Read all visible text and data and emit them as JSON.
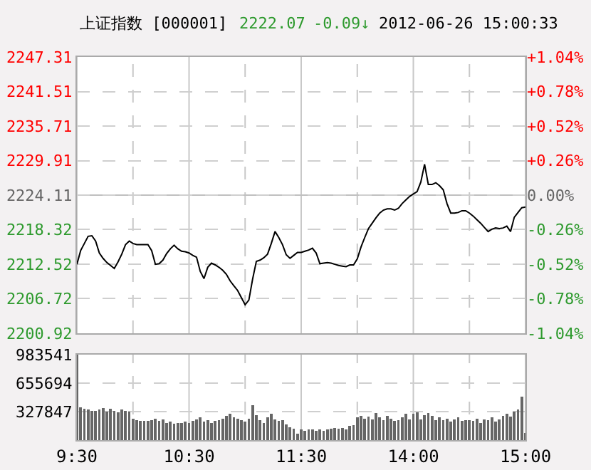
{
  "chart_data": [
    {
      "type": "line",
      "title": "上证指数 [000001]",
      "annotations": [
        "2222.07",
        "-0.09↓",
        "2012-06-26 15:00:33"
      ],
      "categories": [
        null,
        null,
        null,
        null,
        null,
        null,
        null,
        null,
        null,
        null,
        null,
        null,
        null,
        null,
        null,
        null,
        null,
        null,
        null,
        null,
        null,
        null,
        null,
        null,
        null,
        null,
        null,
        null,
        null,
        null,
        null,
        null,
        null,
        null,
        null,
        null,
        null,
        null,
        null,
        null,
        null,
        null,
        null,
        null,
        null,
        null,
        null,
        null,
        null,
        null,
        null,
        null,
        null,
        null,
        null,
        null,
        null,
        null,
        null,
        null,
        null,
        null,
        null,
        null,
        null,
        null,
        null,
        null,
        null,
        null,
        null,
        null,
        null,
        null,
        null,
        null,
        null,
        null,
        null,
        null,
        null,
        null,
        null,
        null,
        null,
        null,
        null,
        null,
        null,
        null,
        null,
        null,
        null,
        null,
        null,
        null,
        null,
        null,
        null,
        null,
        null,
        null,
        null,
        null,
        null,
        null,
        null,
        null,
        null,
        null,
        null,
        null,
        null,
        null,
        null,
        null,
        null,
        null,
        null,
        null,
        null
      ],
      "series": [
        {
          "color": "#000000",
          "values": [
            2212.5,
            2214.8,
            2216.0,
            2217.2,
            2217.3,
            2216.4,
            2214.4,
            2213.5,
            2212.8,
            2212.3,
            2211.8,
            2212.9,
            2214.2,
            2215.8,
            2216.4,
            2216.0,
            2215.8,
            2215.8,
            2215.8,
            2215.8,
            2214.8,
            2212.5,
            2212.6,
            2213.2,
            2214.3,
            2215.1,
            2215.7,
            2215.1,
            2214.7,
            2214.6,
            2214.4,
            2214.0,
            2213.7,
            2211.3,
            2210.1,
            2212.0,
            2212.7,
            2212.4,
            2212.0,
            2211.5,
            2210.8,
            2209.7,
            2208.9,
            2208.1,
            2206.9,
            2205.7,
            2206.5,
            2210.0,
            2213.0,
            2213.2,
            2213.6,
            2214.2,
            2216.0,
            2218.0,
            2217.0,
            2215.8,
            2214.1,
            2213.5,
            2214.0,
            2214.5,
            2214.5,
            2214.7,
            2214.9,
            2215.2,
            2214.4,
            2212.6,
            2212.7,
            2212.8,
            2212.7,
            2212.5,
            2212.3,
            2212.2,
            2212.1,
            2212.4,
            2212.4,
            2213.4,
            2215.4,
            2217.0,
            2218.5,
            2219.4,
            2220.3,
            2221.1,
            2221.6,
            2221.8,
            2221.8,
            2221.6,
            2221.9,
            2222.7,
            2223.3,
            2223.9,
            2224.3,
            2224.7,
            2226.3,
            2229.3,
            2225.9,
            2225.9,
            2226.2,
            2225.7,
            2225.0,
            2222.7,
            2221.1,
            2221.1,
            2221.2,
            2221.5,
            2221.5,
            2221.1,
            2220.6,
            2220.0,
            2219.4,
            2218.7,
            2218.0,
            2218.4,
            2218.6,
            2218.5,
            2218.6,
            2218.9,
            2218.0,
            2220.4,
            2221.2,
            2222.0,
            2222.1
          ]
        }
      ],
      "ylim": [
        2200.92,
        2247.31
      ],
      "yticks": [
        2200.92,
        2206.72,
        2212.52,
        2218.32,
        2224.11,
        2229.91,
        2235.71,
        2241.51,
        2247.31
      ],
      "y2lim": [
        -1.04,
        1.04
      ],
      "y2ticks": [
        {
          "value": -1.04,
          "label": "-1.04%"
        },
        {
          "value": -0.78,
          "label": "-0.78%"
        },
        {
          "value": -0.52,
          "label": "-0.52%"
        },
        {
          "value": -0.26,
          "label": "-0.26%"
        },
        {
          "value": 0,
          "label": "0.00%"
        },
        {
          "value": 0.26,
          "label": "+0.26%"
        },
        {
          "value": 0.52,
          "label": "+0.52%"
        },
        {
          "value": 0.78,
          "label": "+0.78%"
        },
        {
          "value": 1.04,
          "label": "+1.04%"
        }
      ],
      "ref_lines": [
        {
          "axis": "y",
          "value": 2224.11,
          "color": "#c0c0c0",
          "line_style": "solid"
        }
      ],
      "grid": true,
      "line_style": "solid",
      "marker": "none"
    },
    {
      "type": "bar",
      "color": "#666666",
      "categories": [
        "9:30",
        null,
        null,
        null,
        null,
        null,
        null,
        null,
        null,
        null,
        null,
        null,
        null,
        null,
        null,
        null,
        null,
        null,
        null,
        null,
        null,
        null,
        null,
        null,
        null,
        null,
        null,
        null,
        null,
        null,
        "10:30",
        null,
        null,
        null,
        null,
        null,
        null,
        null,
        null,
        null,
        null,
        null,
        null,
        null,
        null,
        null,
        null,
        null,
        null,
        null,
        null,
        null,
        null,
        null,
        null,
        null,
        null,
        null,
        null,
        null,
        "11:30",
        null,
        null,
        null,
        null,
        null,
        null,
        null,
        null,
        null,
        null,
        null,
        null,
        null,
        null,
        null,
        null,
        null,
        null,
        null,
        null,
        null,
        null,
        null,
        null,
        null,
        null,
        null,
        null,
        null,
        "14:00",
        null,
        null,
        null,
        null,
        null,
        null,
        null,
        null,
        null,
        null,
        null,
        null,
        null,
        null,
        null,
        null,
        null,
        null,
        null,
        null,
        null,
        null,
        null,
        null,
        null,
        null,
        null,
        null,
        null,
        "15:00"
      ],
      "values": [
        980000,
        380000,
        360000,
        350000,
        340000,
        340000,
        350000,
        370000,
        330000,
        360000,
        340000,
        320000,
        350000,
        340000,
        330000,
        250000,
        230000,
        220000,
        220000,
        220000,
        230000,
        250000,
        220000,
        240000,
        200000,
        210000,
        190000,
        200000,
        200000,
        210000,
        200000,
        220000,
        240000,
        260000,
        210000,
        230000,
        200000,
        220000,
        230000,
        250000,
        280000,
        300000,
        260000,
        250000,
        230000,
        210000,
        250000,
        400000,
        290000,
        230000,
        200000,
        260000,
        300000,
        240000,
        220000,
        230000,
        180000,
        150000,
        130000,
        70000,
        120000,
        110000,
        120000,
        120000,
        110000,
        120000,
        110000,
        120000,
        130000,
        140000,
        130000,
        140000,
        120000,
        160000,
        170000,
        260000,
        280000,
        250000,
        270000,
        240000,
        310000,
        260000,
        230000,
        280000,
        250000,
        220000,
        230000,
        260000,
        300000,
        240000,
        300000,
        320000,
        240000,
        290000,
        310000,
        280000,
        230000,
        260000,
        230000,
        250000,
        210000,
        240000,
        260000,
        220000,
        230000,
        230000,
        220000,
        250000,
        200000,
        240000,
        230000,
        260000,
        210000,
        240000,
        280000,
        300000,
        270000,
        330000,
        350000,
        500000,
        80000
      ],
      "ylim": [
        0,
        983541
      ],
      "yticks": [
        {
          "value": 0,
          "label": null
        },
        327847,
        655694,
        983541
      ],
      "grid": true
    }
  ]
}
